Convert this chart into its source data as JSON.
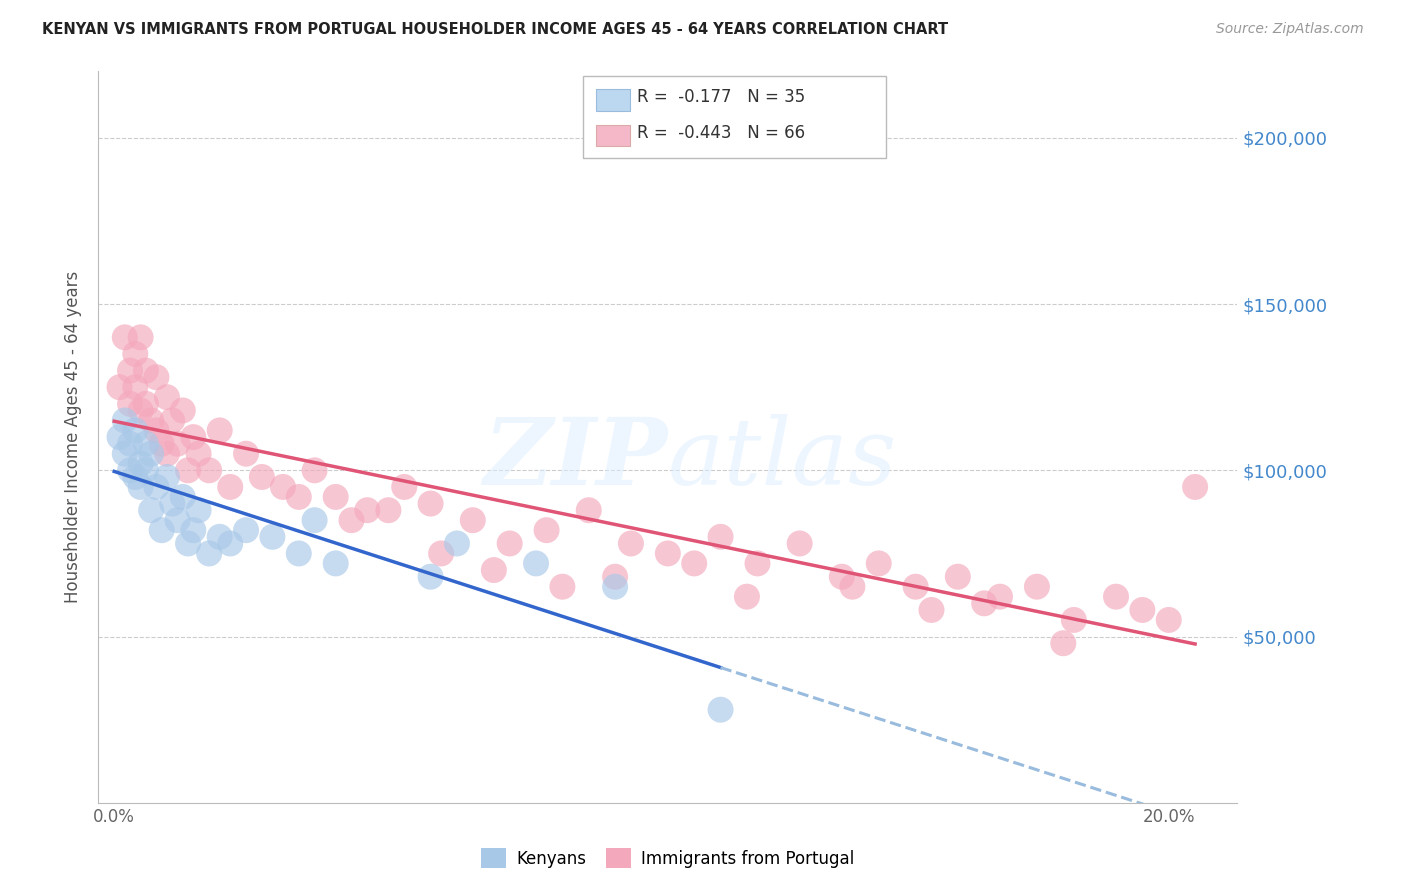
{
  "title": "KENYAN VS IMMIGRANTS FROM PORTUGAL HOUSEHOLDER INCOME AGES 45 - 64 YEARS CORRELATION CHART",
  "source": "Source: ZipAtlas.com",
  "ylabel": "Householder Income Ages 45 - 64 years",
  "xlim": [
    -0.003,
    0.213
  ],
  "ylim": [
    0,
    220000
  ],
  "legend_R_blue": "-0.177",
  "legend_N_blue": "35",
  "legend_R_pink": "-0.443",
  "legend_N_pink": "66",
  "blue_color": "#A8C8E8",
  "pink_color": "#F4A8BC",
  "blue_line_color": "#3366CC",
  "pink_line_color": "#E05575",
  "dashed_line_color": "#99BBDD",
  "kenyan_x": [
    0.001,
    0.002,
    0.002,
    0.003,
    0.003,
    0.004,
    0.004,
    0.005,
    0.005,
    0.006,
    0.006,
    0.007,
    0.007,
    0.008,
    0.009,
    0.01,
    0.011,
    0.012,
    0.013,
    0.014,
    0.015,
    0.016,
    0.018,
    0.02,
    0.022,
    0.025,
    0.03,
    0.035,
    0.038,
    0.042,
    0.06,
    0.065,
    0.08,
    0.095,
    0.115
  ],
  "kenyan_y": [
    110000,
    105000,
    115000,
    108000,
    100000,
    112000,
    98000,
    102000,
    95000,
    108000,
    100000,
    88000,
    105000,
    95000,
    82000,
    98000,
    90000,
    85000,
    92000,
    78000,
    82000,
    88000,
    75000,
    80000,
    78000,
    82000,
    80000,
    75000,
    85000,
    72000,
    68000,
    78000,
    72000,
    65000,
    28000
  ],
  "portugal_x": [
    0.001,
    0.002,
    0.003,
    0.003,
    0.004,
    0.004,
    0.005,
    0.005,
    0.006,
    0.006,
    0.007,
    0.008,
    0.008,
    0.009,
    0.01,
    0.01,
    0.011,
    0.012,
    0.013,
    0.014,
    0.015,
    0.016,
    0.018,
    0.02,
    0.022,
    0.025,
    0.028,
    0.032,
    0.038,
    0.042,
    0.048,
    0.055,
    0.06,
    0.068,
    0.075,
    0.082,
    0.09,
    0.098,
    0.105,
    0.115,
    0.122,
    0.13,
    0.138,
    0.145,
    0.152,
    0.16,
    0.168,
    0.175,
    0.182,
    0.19,
    0.195,
    0.2,
    0.035,
    0.045,
    0.052,
    0.062,
    0.072,
    0.085,
    0.095,
    0.11,
    0.12,
    0.14,
    0.155,
    0.165,
    0.18,
    0.205
  ],
  "portugal_y": [
    125000,
    140000,
    130000,
    120000,
    125000,
    135000,
    140000,
    118000,
    130000,
    120000,
    115000,
    128000,
    112000,
    108000,
    122000,
    105000,
    115000,
    108000,
    118000,
    100000,
    110000,
    105000,
    100000,
    112000,
    95000,
    105000,
    98000,
    95000,
    100000,
    92000,
    88000,
    95000,
    90000,
    85000,
    78000,
    82000,
    88000,
    78000,
    75000,
    80000,
    72000,
    78000,
    68000,
    72000,
    65000,
    68000,
    62000,
    65000,
    55000,
    62000,
    58000,
    55000,
    92000,
    85000,
    88000,
    75000,
    70000,
    65000,
    68000,
    72000,
    62000,
    65000,
    58000,
    60000,
    48000,
    95000
  ]
}
